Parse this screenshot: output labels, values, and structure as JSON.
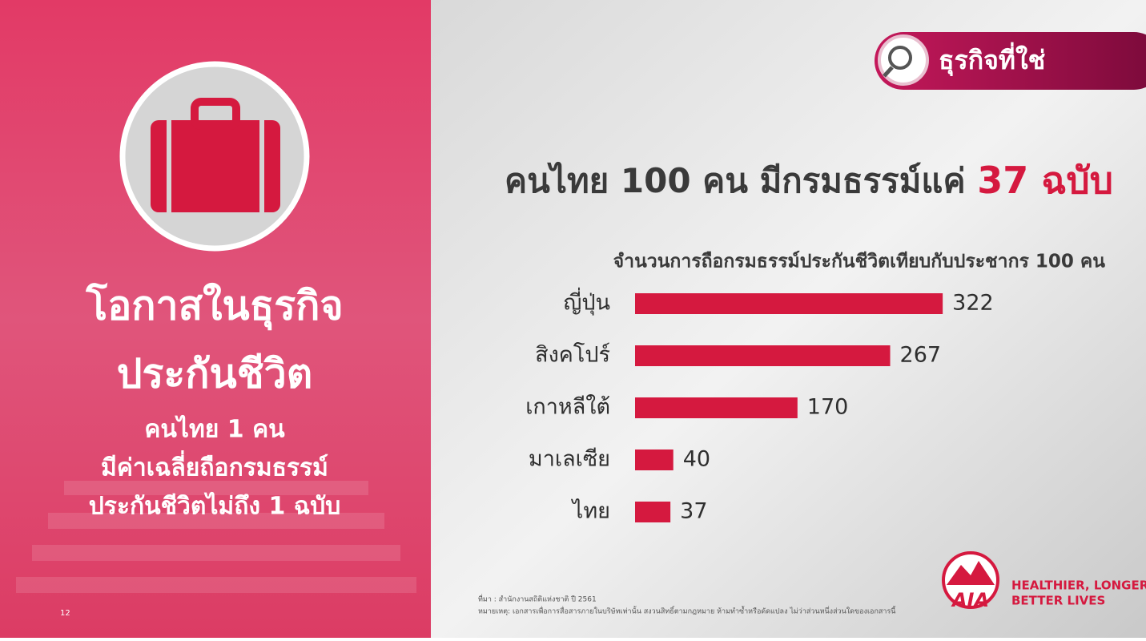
{
  "chart_data": {
    "type": "bar",
    "orientation": "horizontal",
    "title": "คนไทย 100 คน มีกรมธรรม์แค่",
    "title_highlight": "37 ฉบับ",
    "subtitle": "จำนวนการถือกรมธรรม์ประกันชีวิตเทียบกับประชากร 100 คน",
    "categories": [
      "ญี่ปุ่น",
      "สิงคโปร์",
      "เกาหลีใต้",
      "มาเลเซีย",
      "ไทย"
    ],
    "values": [
      322,
      267,
      170,
      40,
      37
    ],
    "color": "#d5193f"
  },
  "badge": "ธุรกิจที่ใช่",
  "left_panel": {
    "heading": [
      "โอกาสในธุรกิจ",
      "ประกันชีวิต"
    ],
    "body": [
      "คนไทย 1 คน",
      "มีค่าเฉลี่ยถือกรมธรรม์",
      "ประกันชีวิตไม่ถึง 1 ฉบับ"
    ]
  },
  "footer": {
    "source": "ที่มา : สำนักงานสถิติแห่งชาติ ปี 2561",
    "note": "หมายเหตุ: เอกสารเพื่อการสื่อสารภายในบริษัทเท่านั้น สงวนสิทธิ์ตามกฎหมาย ห้ามทำซ้ำหรือดัดแปลง ไม่ว่าส่วนหนึ่งส่วนใดของเอกสารนี้"
  },
  "logo": {
    "brand": "AIA",
    "tagline": [
      "HEALTHIER, LONGER,",
      "BETTER LIVES"
    ]
  },
  "page_number": "12"
}
